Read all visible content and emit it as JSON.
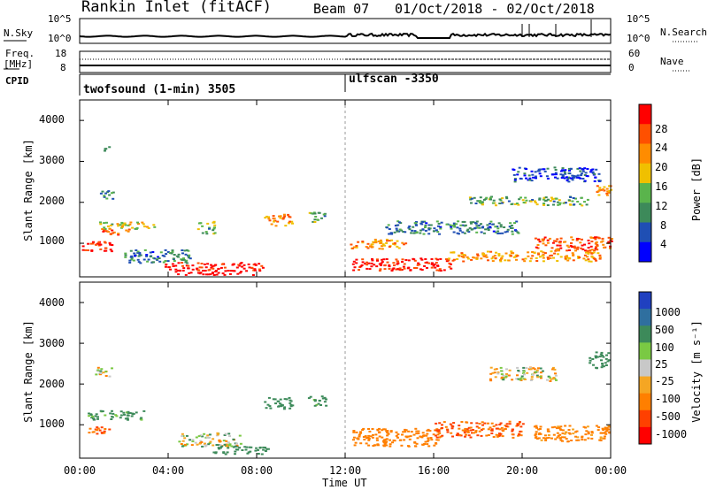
{
  "header": {
    "station": "Rankin Inlet (fitACF)",
    "beam": "Beam 07",
    "date_range": "01/Oct/2018 - 02/Oct/2018"
  },
  "panel_labels": {
    "nsky": "N.Sky",
    "nsearch": "N.Search",
    "freq_line1": "Freq.",
    "freq_line2": "[MHz]",
    "nave": "Nave",
    "cpid": "CPID"
  },
  "noise_axis": {
    "left_ticks": [
      "10^5",
      "10^0"
    ],
    "right_ticks": [
      "10^5",
      "10^0"
    ]
  },
  "freq_axis": {
    "left_ticks": [
      "18",
      "8"
    ],
    "right_ticks": [
      "60",
      "0"
    ]
  },
  "cpid_segments": [
    {
      "label": "twofsound (1-min) 3505",
      "start_hour": 0
    },
    {
      "label": "ulfscan -3350",
      "start_hour": 12
    }
  ],
  "x_axis": {
    "label": "Time UT",
    "ticks": [
      "00:00",
      "04:00",
      "08:00",
      "12:00",
      "16:00",
      "20:00",
      "00:00"
    ],
    "tick_hours": [
      0,
      4,
      8,
      12,
      16,
      20,
      24
    ]
  },
  "power_panel": {
    "ylabel": "Slant Range [km]",
    "yticks": [
      "4000",
      "3000",
      "2000",
      "1000"
    ],
    "ytick_values": [
      4000,
      3000,
      2000,
      1000
    ],
    "colorbar_label": "Power [dB]",
    "colorbar_ticks": [
      "28",
      "24",
      "20",
      "16",
      "12",
      "8",
      "4"
    ],
    "colors": [
      "#0000ff",
      "#1f4fb4",
      "#3d8a5a",
      "#5ab44c",
      "#f0c000",
      "#ff8c00",
      "#ff5000",
      "#ff0000"
    ]
  },
  "velocity_panel": {
    "ylabel": "Slant Range [km]",
    "yticks": [
      "4000",
      "3000",
      "2000",
      "1000"
    ],
    "ytick_values": [
      4000,
      3000,
      2000,
      1000
    ],
    "colorbar_label": "Velocity [m s⁻¹]",
    "colorbar_ticks": [
      "1000",
      "500",
      "100",
      "25",
      "-25",
      "-100",
      "-500",
      "-1000"
    ],
    "colors": [
      "#2040c0",
      "#2f6f9f",
      "#3d8a5a",
      "#7ac943",
      "#c8c8c8",
      "#f5a623",
      "#ff7f00",
      "#ff4000",
      "#ff0000"
    ]
  },
  "chart_data": {
    "type": "heatmap",
    "x_range_hours": [
      0,
      24
    ],
    "y_range_km": [
      180,
      4500
    ],
    "power_dB_range": [
      0,
      30
    ],
    "velocity_range": [
      -1000,
      1000
    ],
    "grid": false,
    "patches_power": [
      {
        "t": 0.1,
        "r": 950,
        "dt": 1.4,
        "dr": 260,
        "p": 28
      },
      {
        "t": 0.8,
        "r": 1450,
        "dt": 2.6,
        "dr": 180,
        "p": 16
      },
      {
        "t": 1.0,
        "r": 1300,
        "dt": 1.2,
        "dr": 160,
        "p": 24
      },
      {
        "t": 0.8,
        "r": 2200,
        "dt": 0.7,
        "dr": 200,
        "p": 8
      },
      {
        "t": 1.0,
        "r": 3350,
        "dt": 0.3,
        "dr": 150,
        "p": 12
      },
      {
        "t": 2.0,
        "r": 700,
        "dt": 3.0,
        "dr": 330,
        "p": 8
      },
      {
        "t": 3.8,
        "r": 450,
        "dt": 4.5,
        "dr": 200,
        "p": 28
      },
      {
        "t": 4.3,
        "r": 300,
        "dt": 3.6,
        "dr": 120,
        "p": 30
      },
      {
        "t": 5.3,
        "r": 1400,
        "dt": 0.8,
        "dr": 300,
        "p": 12
      },
      {
        "t": 8.3,
        "r": 1580,
        "dt": 1.3,
        "dr": 280,
        "p": 20
      },
      {
        "t": 10.3,
        "r": 1650,
        "dt": 0.8,
        "dr": 250,
        "p": 12
      },
      {
        "t": 12.3,
        "r": 500,
        "dt": 4.5,
        "dr": 300,
        "p": 28
      },
      {
        "t": 12.2,
        "r": 1000,
        "dt": 2.5,
        "dr": 250,
        "p": 20
      },
      {
        "t": 13.8,
        "r": 1400,
        "dt": 6.0,
        "dr": 320,
        "p": 8
      },
      {
        "t": 16.5,
        "r": 700,
        "dt": 7.0,
        "dr": 250,
        "p": 20
      },
      {
        "t": 17.5,
        "r": 2050,
        "dt": 5.5,
        "dr": 220,
        "p": 12
      },
      {
        "t": 20.5,
        "r": 1000,
        "dt": 3.5,
        "dr": 350,
        "p": 24
      },
      {
        "t": 19.5,
        "r": 2700,
        "dt": 4.0,
        "dr": 350,
        "p": 4
      },
      {
        "t": 23.2,
        "r": 2300,
        "dt": 0.8,
        "dr": 300,
        "p": 20
      }
    ],
    "patches_velocity": [
      {
        "t": 0.3,
        "r": 1250,
        "dt": 2.6,
        "dr": 220,
        "v": 200
      },
      {
        "t": 0.3,
        "r": 900,
        "dt": 1.0,
        "dr": 200,
        "v": -500
      },
      {
        "t": 0.6,
        "r": 2300,
        "dt": 0.8,
        "dr": 250,
        "v": 0
      },
      {
        "t": 4.3,
        "r": 650,
        "dt": 3.0,
        "dr": 330,
        "v": 0
      },
      {
        "t": 6.0,
        "r": 400,
        "dt": 2.5,
        "dr": 200,
        "v": 300
      },
      {
        "t": 8.3,
        "r": 1550,
        "dt": 1.3,
        "dr": 280,
        "v": 300
      },
      {
        "t": 10.3,
        "r": 1600,
        "dt": 0.8,
        "dr": 250,
        "v": 200
      },
      {
        "t": 12.3,
        "r": 700,
        "dt": 4.0,
        "dr": 450,
        "v": -300
      },
      {
        "t": 16.0,
        "r": 900,
        "dt": 4.0,
        "dr": 400,
        "v": -500
      },
      {
        "t": 18.5,
        "r": 2250,
        "dt": 3.0,
        "dr": 350,
        "v": 0
      },
      {
        "t": 20.5,
        "r": 800,
        "dt": 3.5,
        "dr": 400,
        "v": -200
      },
      {
        "t": 23.0,
        "r": 2600,
        "dt": 0.9,
        "dr": 400,
        "v": 300
      }
    ]
  }
}
